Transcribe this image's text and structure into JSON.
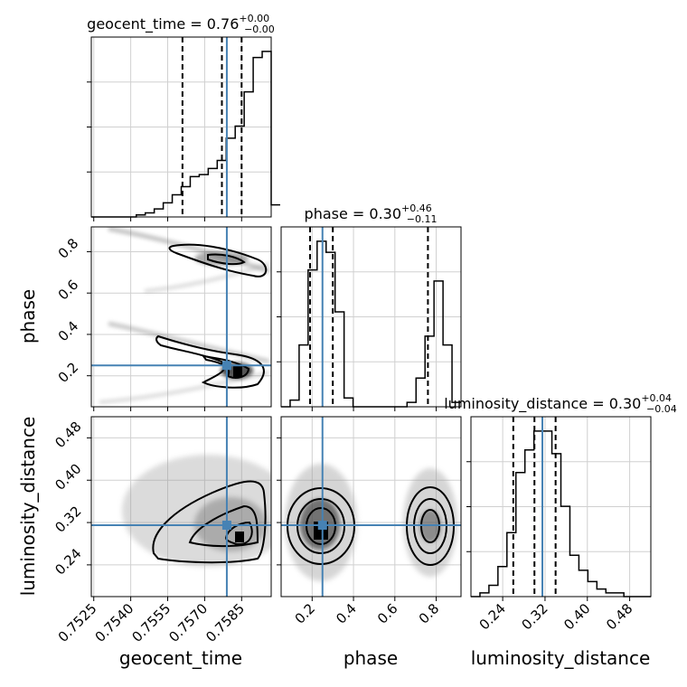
{
  "chart_data": {
    "type": "corner",
    "parameters": [
      "geocent_time",
      "phase",
      "luminosity_distance"
    ],
    "titles": {
      "geocent_time": {
        "label": "geocent_time",
        "median": "0.76",
        "plus": "+0.00",
        "minus": "−0.00"
      },
      "phase": {
        "label": "phase",
        "median": "0.30",
        "plus": "+0.46",
        "minus": "−0.11"
      },
      "luminosity_distance": {
        "label": "luminosity_distance",
        "median": "0.30",
        "plus": "+0.04",
        "minus": "−0.04"
      }
    },
    "axis_labels": {
      "x": [
        "geocent_time",
        "phase",
        "luminosity_distance"
      ],
      "y": [
        "phase",
        "luminosity_distance"
      ]
    },
    "ranges": {
      "geocent_time": [
        0.7524,
        0.7597
      ],
      "phase": [
        0.05,
        0.92
      ],
      "luminosity_distance": [
        0.18,
        0.52
      ]
    },
    "ticks": {
      "geocent_time": [
        "0.7525",
        "0.7540",
        "0.7555",
        "0.7570",
        "0.7585"
      ],
      "phase": [
        "0.2",
        "0.4",
        "0.6",
        "0.8"
      ],
      "luminosity_distance": [
        "0.24",
        "0.32",
        "0.40",
        "0.48"
      ]
    },
    "truths": {
      "geocent_time": 0.7579,
      "phase": 0.25,
      "luminosity_distance": 0.315
    },
    "quantiles": {
      "geocent_time": [
        0.7561,
        0.7577,
        0.7585
      ],
      "phase": [
        0.19,
        0.3,
        0.76
      ],
      "luminosity_distance": [
        0.26,
        0.3,
        0.34
      ]
    },
    "histograms": {
      "geocent_time": {
        "edges_start": 0.7524,
        "bin_width": 0.000365,
        "counts": [
          0,
          0,
          0,
          0,
          0,
          1,
          2,
          4,
          7,
          11,
          15,
          20,
          21,
          24,
          28,
          39,
          45,
          62,
          79,
          82,
          6
        ]
      },
      "phase": {
        "edges_start": 0.05,
        "bin_width": 0.0435,
        "counts": [
          0,
          3,
          28,
          62,
          75,
          70,
          43,
          4,
          0,
          0,
          0,
          0,
          0,
          0,
          2,
          13,
          32,
          57,
          28,
          2
        ]
      },
      "luminosity_distance": {
        "edges_start": 0.18,
        "bin_width": 0.017,
        "counts": [
          0,
          1,
          3,
          8,
          17,
          33,
          39,
          44,
          44,
          38,
          24,
          11,
          7,
          4,
          2,
          1,
          1,
          0,
          0,
          0
        ]
      }
    },
    "grid": true,
    "truth_color": "#4682b4"
  }
}
